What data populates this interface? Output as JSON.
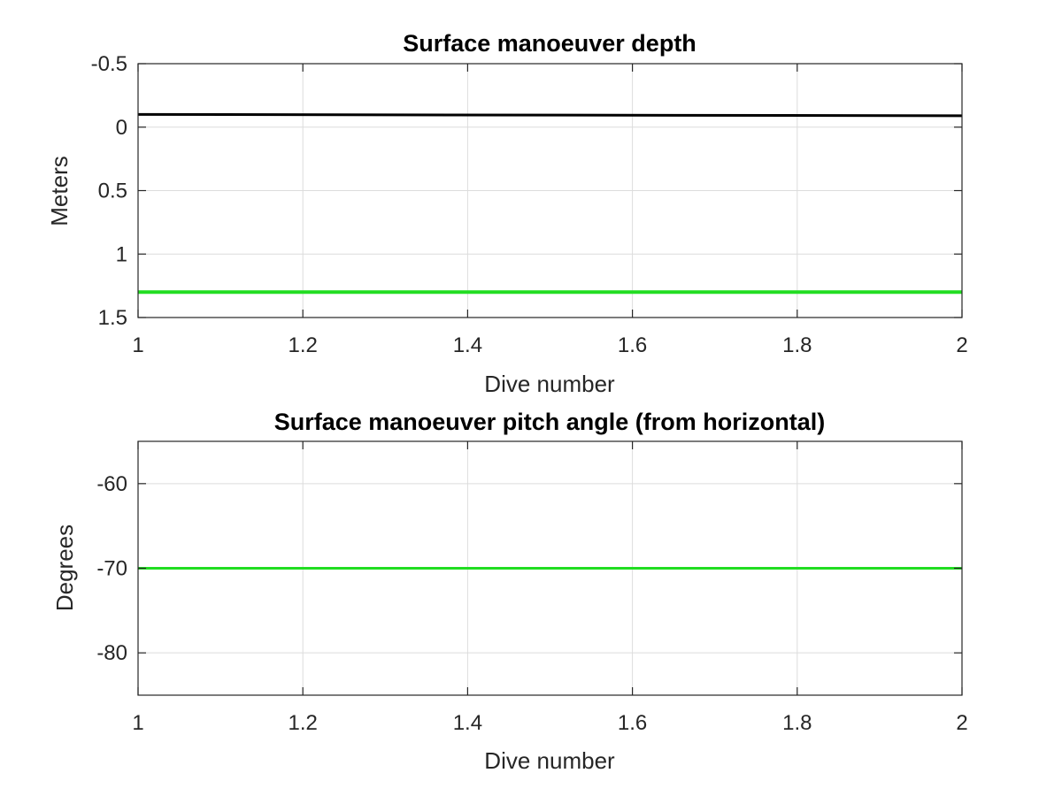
{
  "chart_data": [
    {
      "type": "line",
      "title": "Surface manoeuver depth",
      "xlabel": "Dive number",
      "ylabel": "Meters",
      "xlim": [
        1,
        2
      ],
      "ylim": [
        -0.5,
        1.5
      ],
      "y_reversed": true,
      "grid": true,
      "x_ticks": [
        1,
        1.2,
        1.4,
        1.6,
        1.8,
        2
      ],
      "x_tick_labels": [
        "1",
        "1.2",
        "1.4",
        "1.6",
        "1.8",
        "2"
      ],
      "y_ticks": [
        -0.5,
        0,
        0.5,
        1,
        1.5
      ],
      "y_tick_labels": [
        "-0.5",
        "0",
        "0.5",
        "1",
        "1.5"
      ],
      "series": [
        {
          "color": "#000000",
          "width": 3,
          "x": [
            1,
            2
          ],
          "y": [
            -0.1,
            -0.09
          ]
        },
        {
          "color": "#22dd22",
          "width": 4,
          "x": [
            1,
            2
          ],
          "y": [
            1.3,
            1.3
          ]
        }
      ]
    },
    {
      "type": "line",
      "title": "Surface manoeuver pitch angle (from horizontal)",
      "xlabel": "Dive number",
      "ylabel": "Degrees",
      "xlim": [
        1,
        2
      ],
      "ylim": [
        -85,
        -55
      ],
      "y_reversed": false,
      "grid": true,
      "x_ticks": [
        1,
        1.2,
        1.4,
        1.6,
        1.8,
        2
      ],
      "x_tick_labels": [
        "1",
        "1.2",
        "1.4",
        "1.6",
        "1.8",
        "2"
      ],
      "y_ticks": [
        -80,
        -70,
        -60
      ],
      "y_tick_labels": [
        "-80",
        "-70",
        "-60"
      ],
      "series": [
        {
          "color": "#22dd22",
          "width": 3,
          "x": [
            1,
            2
          ],
          "y": [
            -70,
            -70
          ]
        }
      ]
    }
  ]
}
